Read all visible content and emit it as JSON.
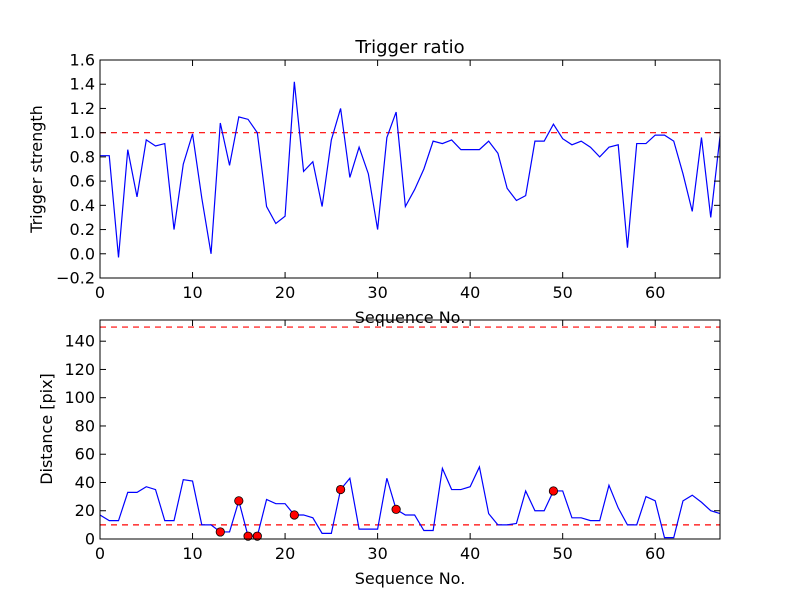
{
  "chart_data": [
    {
      "type": "line",
      "title": "Trigger ratio",
      "xlabel": "Sequence No.",
      "ylabel": "Trigger strength",
      "xlim": [
        0,
        67
      ],
      "ylim": [
        -0.2,
        1.6
      ],
      "xticks": [
        0,
        10,
        20,
        30,
        40,
        50,
        60
      ],
      "yticks": [
        -0.2,
        0.0,
        0.2,
        0.4,
        0.6,
        0.8,
        1.0,
        1.2,
        1.4,
        1.6
      ],
      "ytick_labels": [
        "−0.2",
        "0.0",
        "0.2",
        "0.4",
        "0.6",
        "0.8",
        "1.0",
        "1.2",
        "1.4",
        "1.6"
      ],
      "series": [
        {
          "color": "#0000ff",
          "x": [
            0,
            1,
            2,
            3,
            4,
            5,
            6,
            7,
            8,
            9,
            10,
            11,
            12,
            13,
            14,
            15,
            16,
            17,
            18,
            19,
            20,
            21,
            22,
            23,
            24,
            25,
            26,
            27,
            28,
            29,
            30,
            31,
            32,
            33,
            34,
            35,
            36,
            37,
            38,
            39,
            40,
            41,
            42,
            43,
            44,
            45,
            46,
            47,
            48,
            49,
            50,
            51,
            52,
            53,
            54,
            55,
            56,
            57,
            58,
            59,
            60,
            61,
            62,
            63,
            64,
            65,
            66,
            67
          ],
          "values": [
            0.81,
            0.81,
            -0.03,
            0.86,
            0.47,
            0.94,
            0.89,
            0.91,
            0.2,
            0.74,
            0.99,
            0.46,
            0.0,
            1.08,
            0.73,
            1.13,
            1.11,
            1.0,
            0.39,
            0.25,
            0.31,
            1.42,
            0.68,
            0.76,
            0.39,
            0.94,
            1.2,
            0.63,
            0.88,
            0.66,
            0.2,
            0.96,
            1.17,
            0.39,
            0.53,
            0.7,
            0.93,
            0.91,
            0.94,
            0.86,
            0.86,
            0.86,
            0.93,
            0.83,
            0.54,
            0.44,
            0.48,
            0.93,
            0.93,
            1.07,
            0.95,
            0.9,
            0.93,
            0.88,
            0.8,
            0.88,
            0.9,
            0.05,
            0.91,
            0.91,
            0.98,
            0.98,
            0.93,
            0.66,
            0.35,
            0.96,
            0.3,
            0.97
          ]
        }
      ],
      "reference_lines": [
        {
          "y": 1.0,
          "color": "#ff0000",
          "style": "dashed"
        }
      ],
      "grid": false
    },
    {
      "type": "line",
      "title": "",
      "xlabel": "Sequence No.",
      "ylabel": "Distance [pix]",
      "xlim": [
        0,
        67
      ],
      "ylim": [
        0,
        155
      ],
      "xticks": [
        0,
        10,
        20,
        30,
        40,
        50,
        60
      ],
      "yticks": [
        0,
        20,
        40,
        60,
        80,
        100,
        120,
        140
      ],
      "ytick_labels": [
        "0",
        "20",
        "40",
        "60",
        "80",
        "100",
        "120",
        "140"
      ],
      "series": [
        {
          "color": "#0000ff",
          "x": [
            0,
            1,
            2,
            3,
            4,
            5,
            6,
            7,
            8,
            9,
            10,
            11,
            12,
            13,
            14,
            15,
            16,
            17,
            18,
            19,
            20,
            21,
            22,
            23,
            24,
            25,
            26,
            27,
            28,
            29,
            30,
            31,
            32,
            33,
            34,
            35,
            36,
            37,
            38,
            39,
            40,
            41,
            42,
            43,
            44,
            45,
            46,
            47,
            48,
            49,
            50,
            51,
            52,
            53,
            54,
            55,
            56,
            57,
            58,
            59,
            60,
            61,
            62,
            63,
            64,
            65,
            66,
            67
          ],
          "values": [
            17,
            13,
            13,
            33,
            33,
            37,
            35,
            13,
            13,
            42,
            41,
            10,
            10,
            5,
            5,
            27,
            2,
            2,
            28,
            25,
            25,
            17,
            17,
            15,
            4,
            4,
            35,
            43,
            7,
            7,
            7,
            43,
            21,
            17,
            17,
            6,
            6,
            50,
            35,
            35,
            37,
            51,
            18,
            10,
            10,
            11,
            34,
            20,
            20,
            34,
            34,
            15,
            15,
            13,
            13,
            38,
            22,
            10,
            10,
            30,
            27,
            1,
            1,
            27,
            31,
            26,
            20,
            18
          ]
        },
        {
          "type": "scatter",
          "color": "#ff0000",
          "x": [
            13,
            15,
            16,
            17,
            21,
            26,
            32,
            49
          ],
          "values": [
            5,
            27,
            2,
            2,
            17,
            35,
            21,
            34
          ]
        }
      ],
      "reference_lines": [
        {
          "y": 150,
          "color": "#ff0000",
          "style": "dashed"
        },
        {
          "y": 10,
          "color": "#ff0000",
          "style": "dashed"
        }
      ],
      "grid": false
    }
  ]
}
